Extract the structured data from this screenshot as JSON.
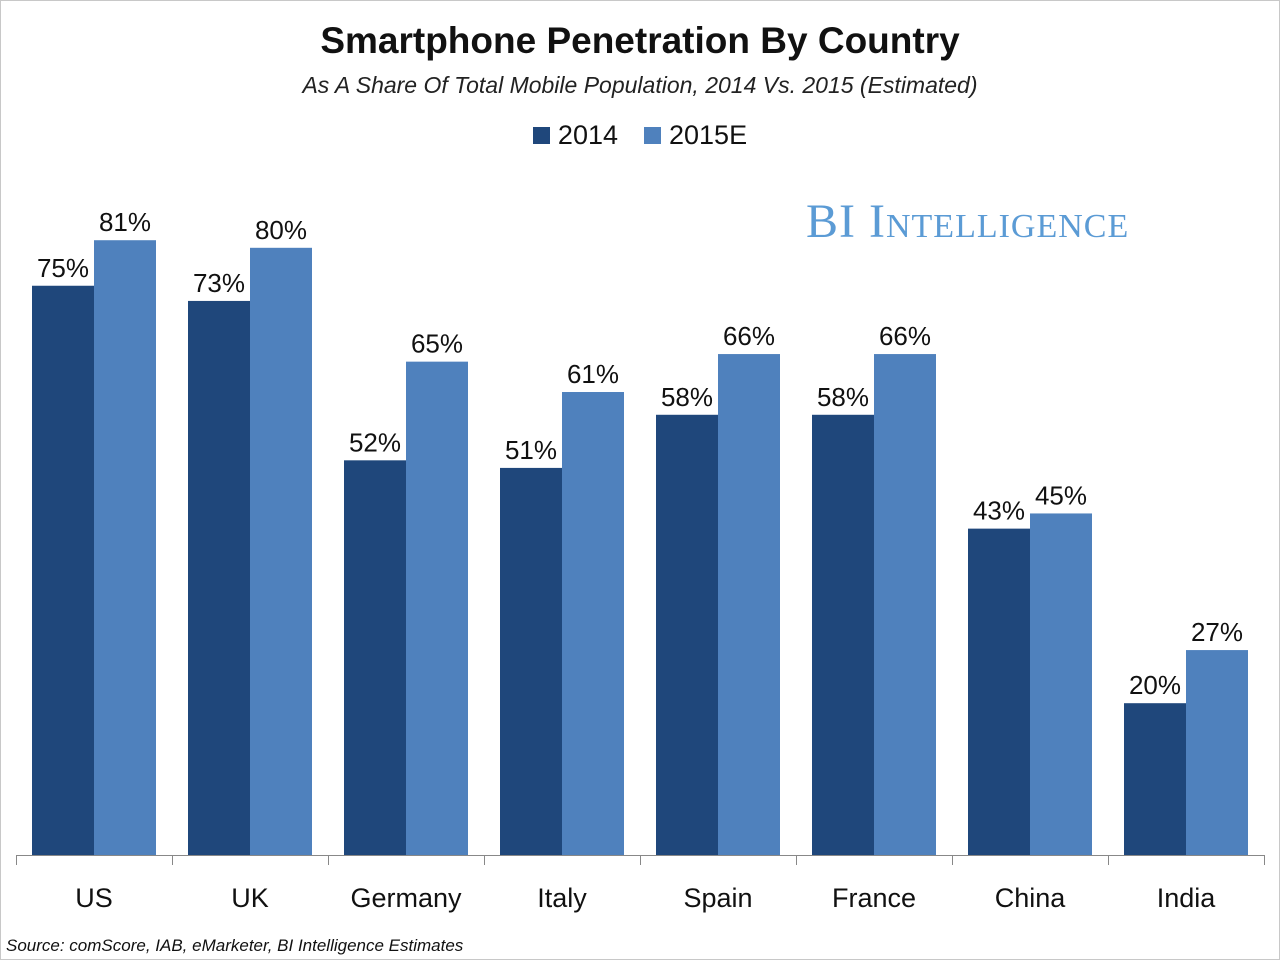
{
  "chart_data": {
    "type": "bar",
    "title": "Smartphone Penetration By Country",
    "subtitle": "As A Share Of Total Mobile Population, 2014 Vs. 2015 (Estimated)",
    "categories": [
      "US",
      "UK",
      "Germany",
      "Italy",
      "Spain",
      "France",
      "China",
      "India"
    ],
    "series": [
      {
        "name": "2014",
        "values": [
          75,
          73,
          52,
          51,
          58,
          58,
          43,
          20
        ],
        "color": "#1f477b"
      },
      {
        "name": "2015E",
        "values": [
          81,
          80,
          65,
          61,
          66,
          66,
          45,
          27
        ],
        "color": "#4f81bd"
      }
    ],
    "value_suffix": "%",
    "ylim": [
      0,
      100
    ],
    "grid": false,
    "legend": "top-center",
    "data_labels": true
  },
  "logo": "BI Intelligence",
  "source": "Source: comScore, IAB, eMarketer, BI Intelligence Estimates"
}
